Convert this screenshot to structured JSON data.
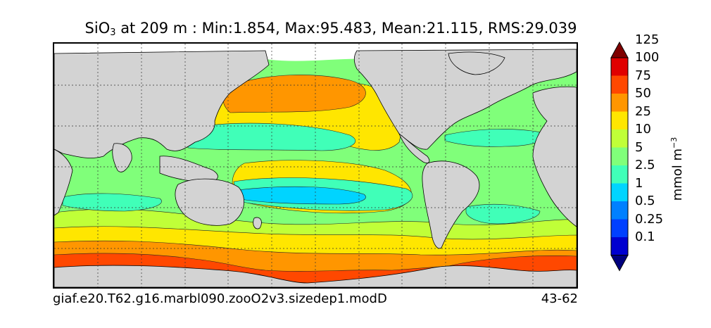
{
  "title": {
    "variable": "SiO",
    "subscript": "3",
    "text": " at 209 m : Min:1.854, Max:95.483, Mean:21.115, RMS:29.039"
  },
  "colorbar": {
    "units_main": "mmol m",
    "units_sup": "−3",
    "levels": [
      "0.1",
      "0.25",
      "0.5",
      "1",
      "2.5",
      "5",
      "10",
      "25",
      "50",
      "75",
      "100",
      "125"
    ],
    "colors": [
      "#00007f",
      "#0000d0",
      "#0040ff",
      "#0080ff",
      "#00d4ff",
      "#40ffb8",
      "#80ff7a",
      "#c0ff38",
      "#ffe600",
      "#ff9600",
      "#ff4800",
      "#e00000",
      "#7f0000"
    ]
  },
  "map": {
    "land_color": "#d3d3d3",
    "missing_color": "#ffffff",
    "grid": true
  },
  "caption": {
    "case": "giaf.e20.T62.g16.marbl090.zooO2v3.sizedep1.modD",
    "years": "43-62"
  },
  "chart_data": {
    "type": "heatmap",
    "variable": "SiO3",
    "depth": "209 m",
    "min": 1.854,
    "max": 95.483,
    "mean": 21.115,
    "rms": 29.039,
    "units": "mmol m-3",
    "colorbar_levels": [
      0.1,
      0.25,
      0.5,
      1,
      2.5,
      5,
      10,
      25,
      50,
      75,
      100,
      125
    ],
    "colorbar_extend": "both"
  }
}
